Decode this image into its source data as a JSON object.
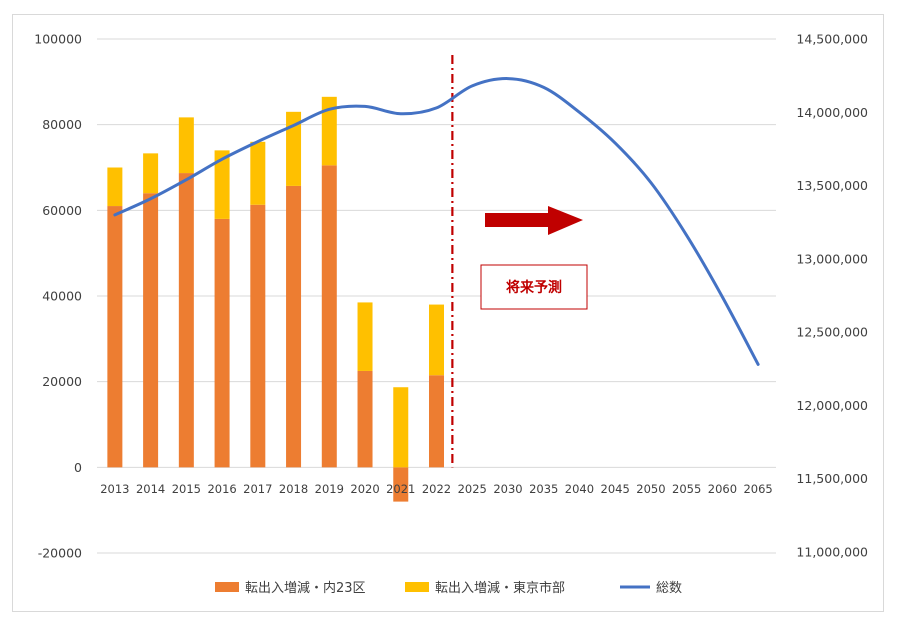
{
  "chart_data": {
    "type": "bar+line",
    "categories": [
      "2013",
      "2014",
      "2015",
      "2016",
      "2017",
      "2018",
      "2019",
      "2020",
      "2021",
      "2022",
      "2025",
      "2030",
      "2035",
      "2040",
      "2045",
      "2050",
      "2055",
      "2060",
      "2065"
    ],
    "series": [
      {
        "name": "転出入増減・内23区",
        "type": "stacked-bar",
        "axis": "left",
        "color": "#ed7d31",
        "values": [
          61000,
          64000,
          68700,
          58000,
          61300,
          65700,
          70500,
          22500,
          -8000,
          21500,
          null,
          null,
          null,
          null,
          null,
          null,
          null,
          null,
          null
        ]
      },
      {
        "name": "転出入増減・東京市部",
        "type": "stacked-bar",
        "axis": "left",
        "color": "#ffc000",
        "values": [
          9000,
          9300,
          13000,
          16000,
          14700,
          17300,
          16000,
          16000,
          18700,
          16500,
          null,
          null,
          null,
          null,
          null,
          null,
          null,
          null,
          null
        ]
      },
      {
        "name": "総数",
        "type": "line",
        "axis": "right",
        "color": "#4472c4",
        "values": [
          13300000,
          13410000,
          13540000,
          13680000,
          13800000,
          13910000,
          14020000,
          14040000,
          13990000,
          14030000,
          14180000,
          14230000,
          14170000,
          14000000,
          13790000,
          13520000,
          13160000,
          12740000,
          12280000
        ]
      }
    ],
    "y_left": {
      "min": -20000,
      "max": 100000,
      "ticks": [
        "100000",
        "80000",
        "60000",
        "40000",
        "20000",
        "0",
        "-20000"
      ]
    },
    "y_right": {
      "min": 11000000,
      "max": 14500000,
      "ticks": [
        "14,500,000",
        "14,000,000",
        "13,500,000",
        "13,000,000",
        "12,500,000",
        "12,000,000",
        "11,500,000",
        "11,000,000"
      ]
    },
    "grid": true,
    "legend_position": "bottom",
    "annotation": {
      "text": "将来予測",
      "divider_after": "2022",
      "arrow": "right",
      "color": "#c00000"
    }
  }
}
